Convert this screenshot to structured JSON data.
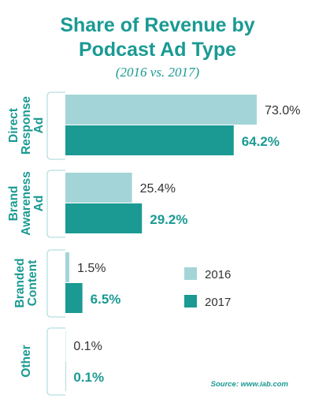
{
  "chart_data": {
    "type": "bar",
    "orientation": "horizontal",
    "title": "Share of Revenue by Podcast Ad Type",
    "subtitle": "(2016 vs. 2017)",
    "categories": [
      "Direct Response Ad",
      "Brand Awareness Ad",
      "Branded Content",
      "Other"
    ],
    "series": [
      {
        "name": "2016",
        "values": [
          73.0,
          25.4,
          1.5,
          0.1
        ],
        "labels": [
          "73.0%",
          "25.4%",
          "1.5%",
          "0.1%"
        ],
        "color": "#a3d5d8"
      },
      {
        "name": "2017",
        "values": [
          64.2,
          29.2,
          6.5,
          0.1
        ],
        "labels": [
          "64.2%",
          "29.2%",
          "6.5%",
          "0.1%"
        ],
        "color": "#1a9a93"
      }
    ],
    "xlim": [
      0,
      100
    ],
    "grid": false,
    "legend": "right",
    "source": "Source: www.iab.com"
  }
}
